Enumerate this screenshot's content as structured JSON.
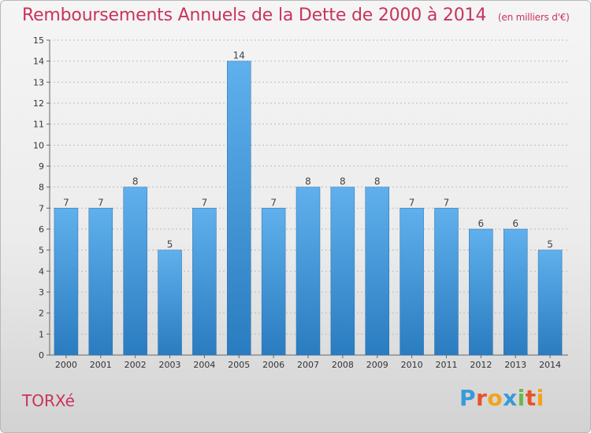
{
  "title": "Remboursements Annuels de la Dette de 2000 à 2014",
  "subtitle": "(en milliers d'€)",
  "commune": "TORXé",
  "logo": {
    "letters": [
      "P",
      "r",
      "o",
      "x",
      "i",
      "t",
      "i"
    ],
    "colors": [
      "#3a9ad9",
      "#e8522a",
      "#f2a31b",
      "#3a9ad9",
      "#6ab94a",
      "#e8522a",
      "#f2a31b"
    ]
  },
  "colors": {
    "bar_top": "#5fb0ec",
    "bar_bottom": "#2a7cc0",
    "title": "#c8345d",
    "grid": "#bbbbbb"
  },
  "chart_data": {
    "type": "bar",
    "title": "Remboursements Annuels de la Dette de 2000 à 2014",
    "subtitle": "(en milliers d'€)",
    "categories": [
      "2000",
      "2001",
      "2002",
      "2003",
      "2004",
      "2005",
      "2006",
      "2007",
      "2008",
      "2009",
      "2010",
      "2011",
      "2012",
      "2013",
      "2014"
    ],
    "values": [
      7,
      7,
      8,
      5,
      7,
      14,
      7,
      8,
      8,
      8,
      7,
      7,
      6,
      6,
      5
    ],
    "ylim": [
      0,
      15
    ],
    "yticks": [
      0,
      1,
      2,
      3,
      4,
      5,
      6,
      7,
      8,
      9,
      10,
      11,
      12,
      13,
      14,
      15
    ],
    "grid": true,
    "legend": "none"
  }
}
